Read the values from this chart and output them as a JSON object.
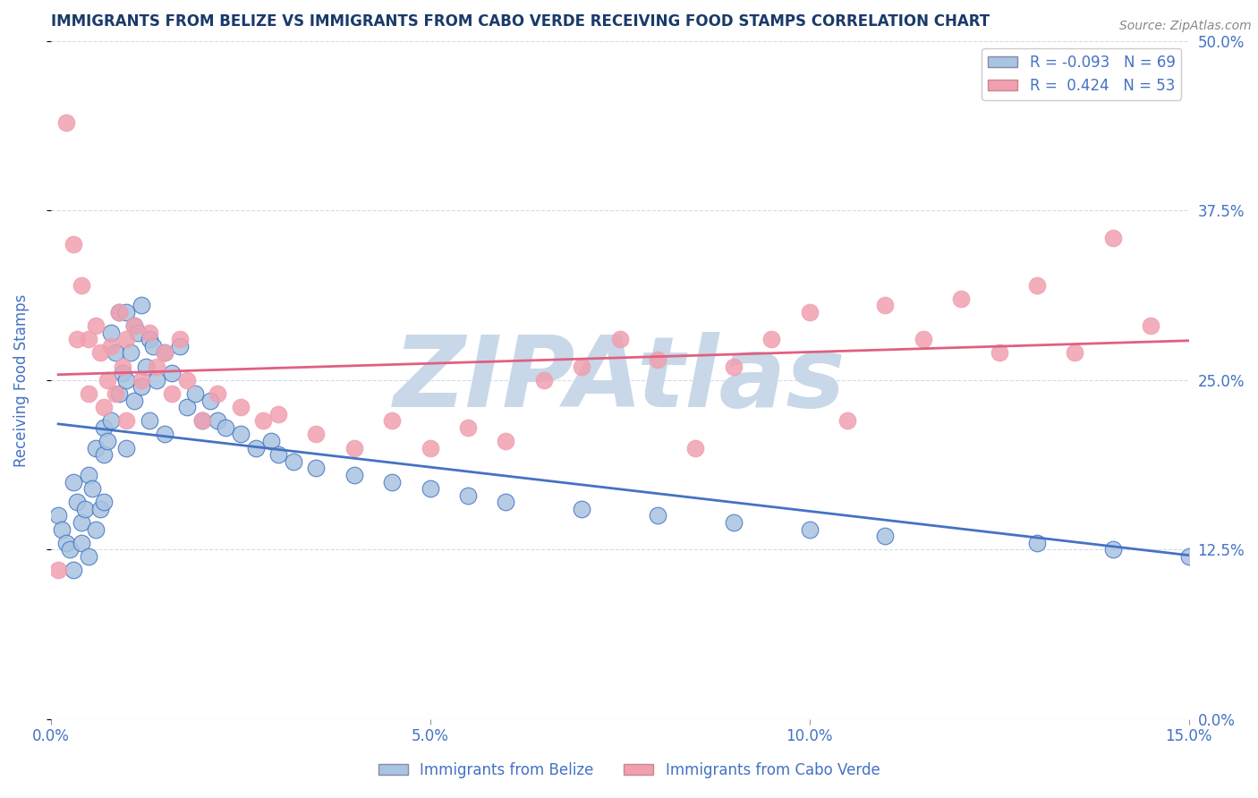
{
  "title": "IMMIGRANTS FROM BELIZE VS IMMIGRANTS FROM CABO VERDE RECEIVING FOOD STAMPS CORRELATION CHART",
  "source": "Source: ZipAtlas.com",
  "ylabel": "Receiving Food Stamps",
  "xlabel_belize": "Immigrants from Belize",
  "xlabel_caboverde": "Immigrants from Cabo Verde",
  "xmin": 0.0,
  "xmax": 15.0,
  "ymin": 0.0,
  "ymax": 50.0,
  "yticks": [
    0.0,
    12.5,
    25.0,
    37.5,
    50.0
  ],
  "xticks": [
    0.0,
    5.0,
    10.0,
    15.0
  ],
  "R_belize": -0.093,
  "N_belize": 69,
  "R_caboverde": 0.424,
  "N_caboverde": 53,
  "color_belize": "#a8c4e0",
  "color_caboverde": "#f0a0b0",
  "line_color_belize": "#4472c4",
  "line_color_caboverde": "#e06080",
  "watermark": "ZIPAtlas",
  "watermark_color": "#c8d8e8",
  "title_color": "#1a3a6a",
  "tick_label_color": "#4472c4",
  "background_color": "#ffffff",
  "grid_color": "#d0dce8",
  "belize_x": [
    0.1,
    0.15,
    0.2,
    0.25,
    0.3,
    0.3,
    0.35,
    0.4,
    0.4,
    0.45,
    0.5,
    0.5,
    0.55,
    0.6,
    0.6,
    0.65,
    0.7,
    0.7,
    0.7,
    0.75,
    0.8,
    0.8,
    0.85,
    0.9,
    0.9,
    0.95,
    1.0,
    1.0,
    1.0,
    1.05,
    1.1,
    1.1,
    1.15,
    1.2,
    1.2,
    1.25,
    1.3,
    1.3,
    1.35,
    1.4,
    1.5,
    1.5,
    1.6,
    1.7,
    1.8,
    1.9,
    2.0,
    2.1,
    2.2,
    2.3,
    2.5,
    2.7,
    2.9,
    3.0,
    3.2,
    3.5,
    4.0,
    4.5,
    5.0,
    5.5,
    6.0,
    7.0,
    8.0,
    9.0,
    10.0,
    11.0,
    13.0,
    14.0,
    15.0
  ],
  "belize_y": [
    15.0,
    14.0,
    13.0,
    12.5,
    17.5,
    11.0,
    16.0,
    14.5,
    13.0,
    15.5,
    18.0,
    12.0,
    17.0,
    20.0,
    14.0,
    15.5,
    21.5,
    19.5,
    16.0,
    20.5,
    28.5,
    22.0,
    27.0,
    30.0,
    24.0,
    25.5,
    30.0,
    25.0,
    20.0,
    27.0,
    29.0,
    23.5,
    28.5,
    30.5,
    24.5,
    26.0,
    28.0,
    22.0,
    27.5,
    25.0,
    27.0,
    21.0,
    25.5,
    27.5,
    23.0,
    24.0,
    22.0,
    23.5,
    22.0,
    21.5,
    21.0,
    20.0,
    20.5,
    19.5,
    19.0,
    18.5,
    18.0,
    17.5,
    17.0,
    16.5,
    16.0,
    15.5,
    15.0,
    14.5,
    14.0,
    13.5,
    13.0,
    12.5,
    12.0
  ],
  "caboverde_x": [
    0.1,
    0.2,
    0.3,
    0.35,
    0.4,
    0.5,
    0.5,
    0.6,
    0.65,
    0.7,
    0.75,
    0.8,
    0.85,
    0.9,
    0.95,
    1.0,
    1.0,
    1.1,
    1.2,
    1.3,
    1.4,
    1.5,
    1.6,
    1.7,
    1.8,
    2.0,
    2.2,
    2.5,
    2.8,
    3.0,
    3.5,
    4.0,
    4.5,
    5.0,
    5.5,
    6.0,
    6.5,
    7.0,
    7.5,
    8.0,
    8.5,
    9.0,
    9.5,
    10.0,
    10.5,
    11.0,
    11.5,
    12.0,
    12.5,
    13.0,
    13.5,
    14.0,
    14.5
  ],
  "caboverde_y": [
    11.0,
    44.0,
    35.0,
    28.0,
    32.0,
    28.0,
    24.0,
    29.0,
    27.0,
    23.0,
    25.0,
    27.5,
    24.0,
    30.0,
    26.0,
    28.0,
    22.0,
    29.0,
    25.0,
    28.5,
    26.0,
    27.0,
    24.0,
    28.0,
    25.0,
    22.0,
    24.0,
    23.0,
    22.0,
    22.5,
    21.0,
    20.0,
    22.0,
    20.0,
    21.5,
    20.5,
    25.0,
    26.0,
    28.0,
    26.5,
    20.0,
    26.0,
    28.0,
    30.0,
    22.0,
    30.5,
    28.0,
    31.0,
    27.0,
    32.0,
    27.0,
    35.5,
    29.0
  ]
}
